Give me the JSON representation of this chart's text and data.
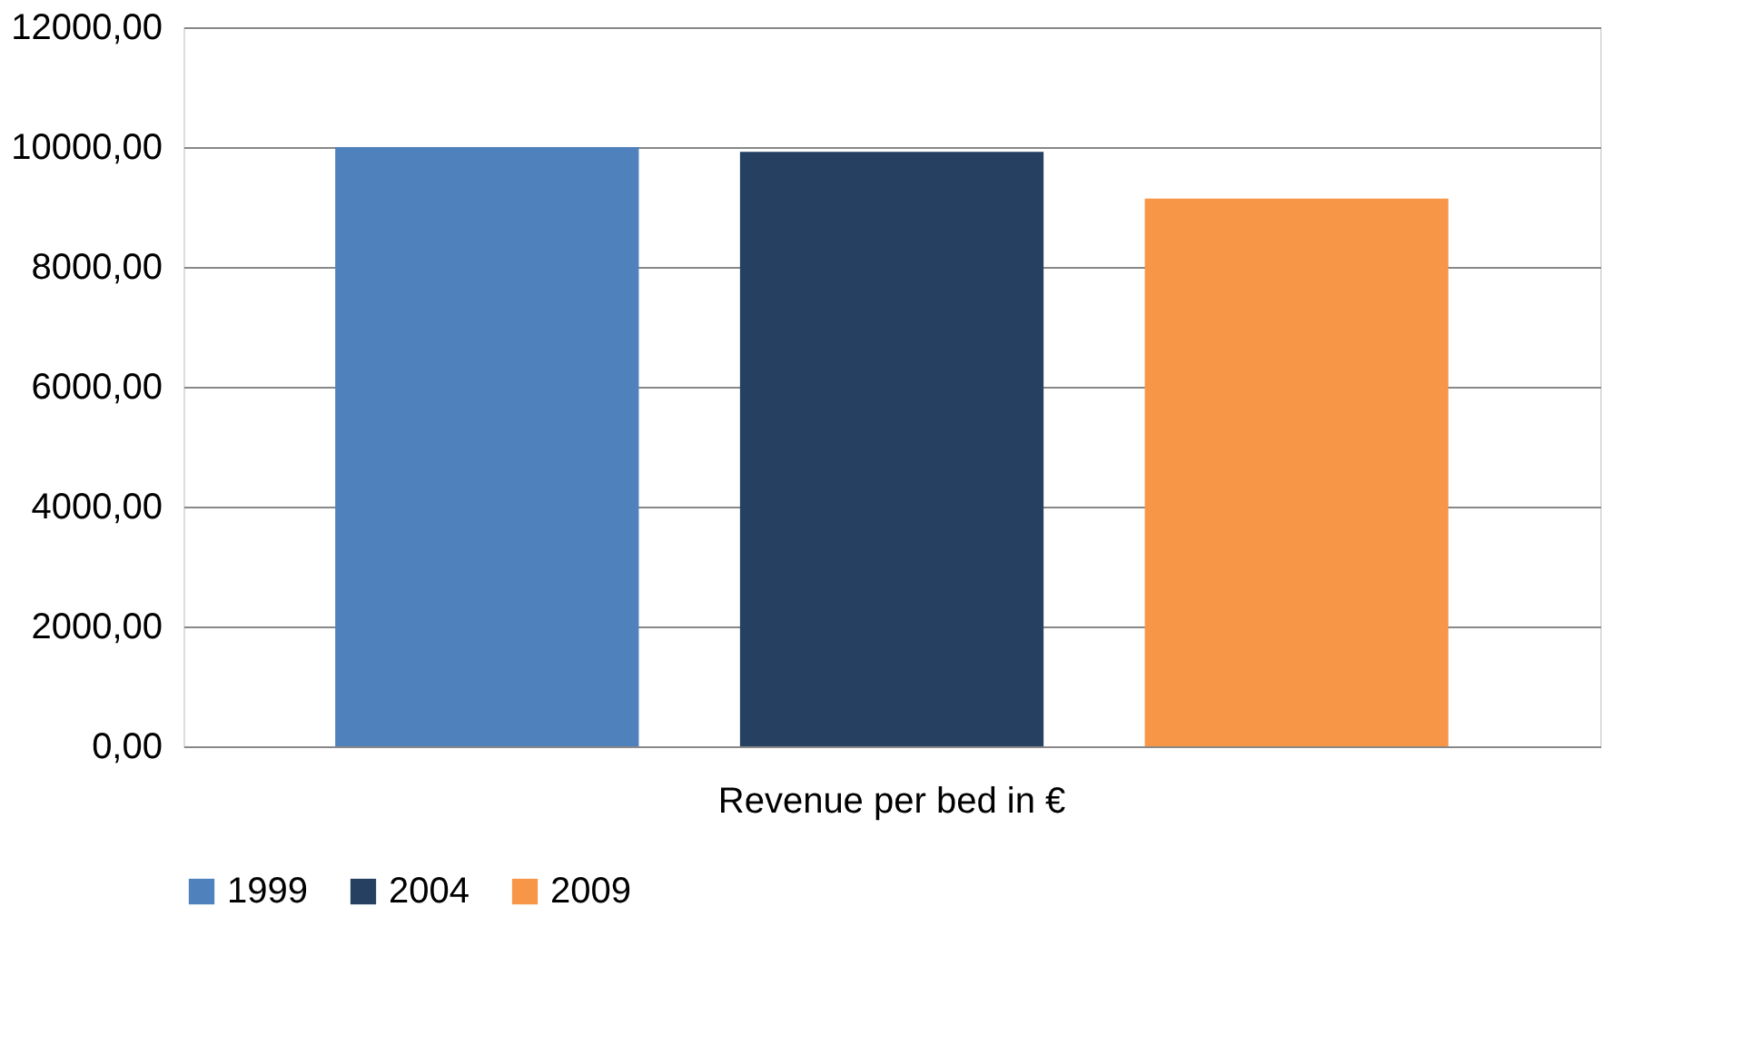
{
  "chart_data": {
    "type": "bar",
    "categories": [
      "Revenue per bed in €"
    ],
    "series": [
      {
        "name": "1999",
        "color": "#4f81bd",
        "values": [
          10000
        ]
      },
      {
        "name": "2004",
        "color": "#254061",
        "values": [
          9920
        ]
      },
      {
        "name": "2009",
        "color": "#f79646",
        "values": [
          9140
        ]
      }
    ],
    "ylim": [
      0,
      12000
    ],
    "yticks": [
      {
        "value": 0,
        "label": "0,00"
      },
      {
        "value": 2000,
        "label": "2000,00"
      },
      {
        "value": 4000,
        "label": "4000,00"
      },
      {
        "value": 6000,
        "label": "6000,00"
      },
      {
        "value": 8000,
        "label": "8000,00"
      },
      {
        "value": 10000,
        "label": "10000,00"
      },
      {
        "value": 12000,
        "label": "12000,00"
      }
    ],
    "grid": "y",
    "legend": "bottom"
  }
}
